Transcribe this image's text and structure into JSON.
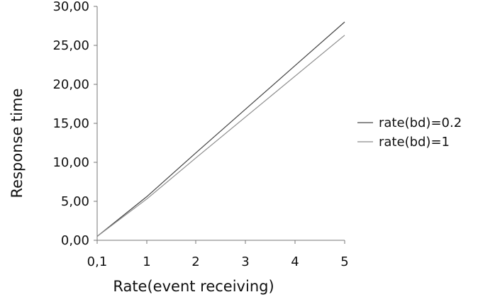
{
  "chart_data": {
    "type": "line",
    "title": "",
    "xlabel": "Rate(event receiving)",
    "ylabel": "Response time",
    "x": [
      "0,1",
      "1",
      "2",
      "3",
      "4",
      "5"
    ],
    "y_ticks": [
      "0,00",
      "5,00",
      "10,00",
      "15,00",
      "20,00",
      "25,00",
      "30,00"
    ],
    "ylim": [
      0,
      30
    ],
    "grid": false,
    "legend_position": "right",
    "series": [
      {
        "name": "rate(bd)=0.2",
        "color": "#444444",
        "values": [
          0.5,
          5.6,
          11.2,
          16.8,
          22.4,
          28.0
        ]
      },
      {
        "name": "rate(bd)=1",
        "color": "#8c8c8c",
        "values": [
          0.5,
          5.3,
          10.55,
          15.8,
          21.05,
          26.3
        ]
      }
    ]
  }
}
